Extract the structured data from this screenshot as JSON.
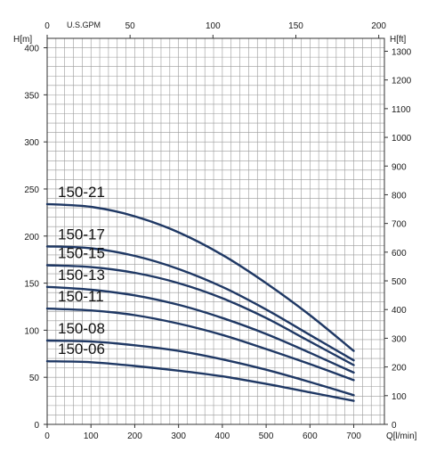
{
  "chart_data": {
    "type": "line",
    "title": "",
    "xlabel": "Q[l/min]",
    "ylabel": "H[m]",
    "top_xlabel": "U.S.GPM",
    "right_ylabel": "H[ft]",
    "xlim": [
      0,
      770
    ],
    "ylim": [
      0,
      410
    ],
    "top_xlim": [
      0,
      203.4
    ],
    "right_ylim": [
      0,
      1345
    ],
    "x_ticks": [
      0,
      100,
      200,
      300,
      400,
      500,
      600,
      700
    ],
    "y_ticks": [
      0,
      50,
      100,
      150,
      200,
      250,
      300,
      350,
      400
    ],
    "top_x_ticks": [
      0,
      50,
      100,
      150,
      200
    ],
    "right_y_ticks": [
      0,
      100,
      200,
      300,
      400,
      500,
      600,
      700,
      800,
      900,
      1000,
      1100,
      1200,
      1300
    ],
    "grid": true,
    "line_color": "#1f3864",
    "series": [
      {
        "name": "150-21",
        "x": [
          0,
          100,
          200,
          300,
          400,
          500,
          600,
          700
        ],
        "y": [
          234,
          231,
          221,
          204,
          180,
          150,
          116,
          78
        ]
      },
      {
        "name": "150-17",
        "x": [
          0,
          100,
          200,
          300,
          400,
          500,
          600,
          700
        ],
        "y": [
          189,
          187,
          179,
          165,
          146,
          122,
          95,
          68
        ]
      },
      {
        "name": "150-15",
        "x": [
          0,
          100,
          200,
          300,
          400,
          500,
          600,
          700
        ],
        "y": [
          169,
          167,
          161,
          150,
          134,
          113,
          88,
          63
        ]
      },
      {
        "name": "150-13",
        "x": [
          0,
          100,
          200,
          300,
          400,
          500,
          600,
          700
        ],
        "y": [
          146,
          143,
          137,
          127,
          113,
          96,
          76,
          55
        ]
      },
      {
        "name": "150-11",
        "x": [
          0,
          100,
          200,
          300,
          400,
          500,
          600,
          700
        ],
        "y": [
          123,
          121,
          116,
          107,
          95,
          80,
          64,
          47
        ]
      },
      {
        "name": "150-08",
        "x": [
          0,
          100,
          200,
          300,
          400,
          500,
          600,
          700
        ],
        "y": [
          89,
          88,
          84,
          78,
          69,
          58,
          45,
          31
        ]
      },
      {
        "name": "150-06",
        "x": [
          0,
          100,
          200,
          300,
          400,
          500,
          600,
          700
        ],
        "y": [
          67,
          66,
          62,
          57,
          51,
          43,
          34,
          25
        ]
      }
    ]
  }
}
